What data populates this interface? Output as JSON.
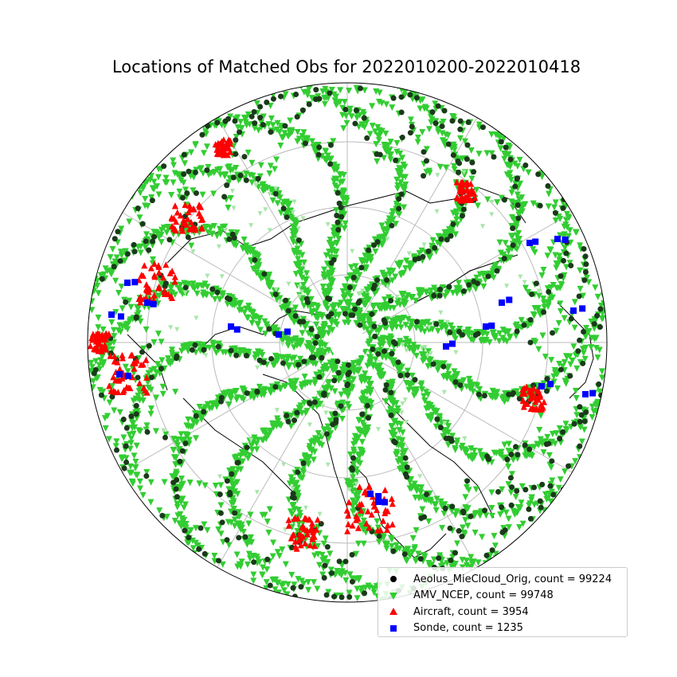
{
  "title": "Locations of Matched Obs for 2022010200-2022010418",
  "legend": [
    {
      "label": "Aeolus_MieCloud_Orig, count = 99224",
      "color": "#000000",
      "marker": "circle"
    },
    {
      "label": "AMV_NCEP, count = 99748",
      "color": "#32cd32",
      "marker": "triangle-down"
    },
    {
      "label": "Aircraft, count = 3954",
      "color": "#ff0000",
      "marker": "triangle-up"
    },
    {
      "label": "Sonde, count = 1235",
      "color": "#0000ff",
      "marker": "square"
    }
  ],
  "map": {
    "projection": "north polar stereographic",
    "graticule": "on",
    "coastlines": "on"
  }
}
